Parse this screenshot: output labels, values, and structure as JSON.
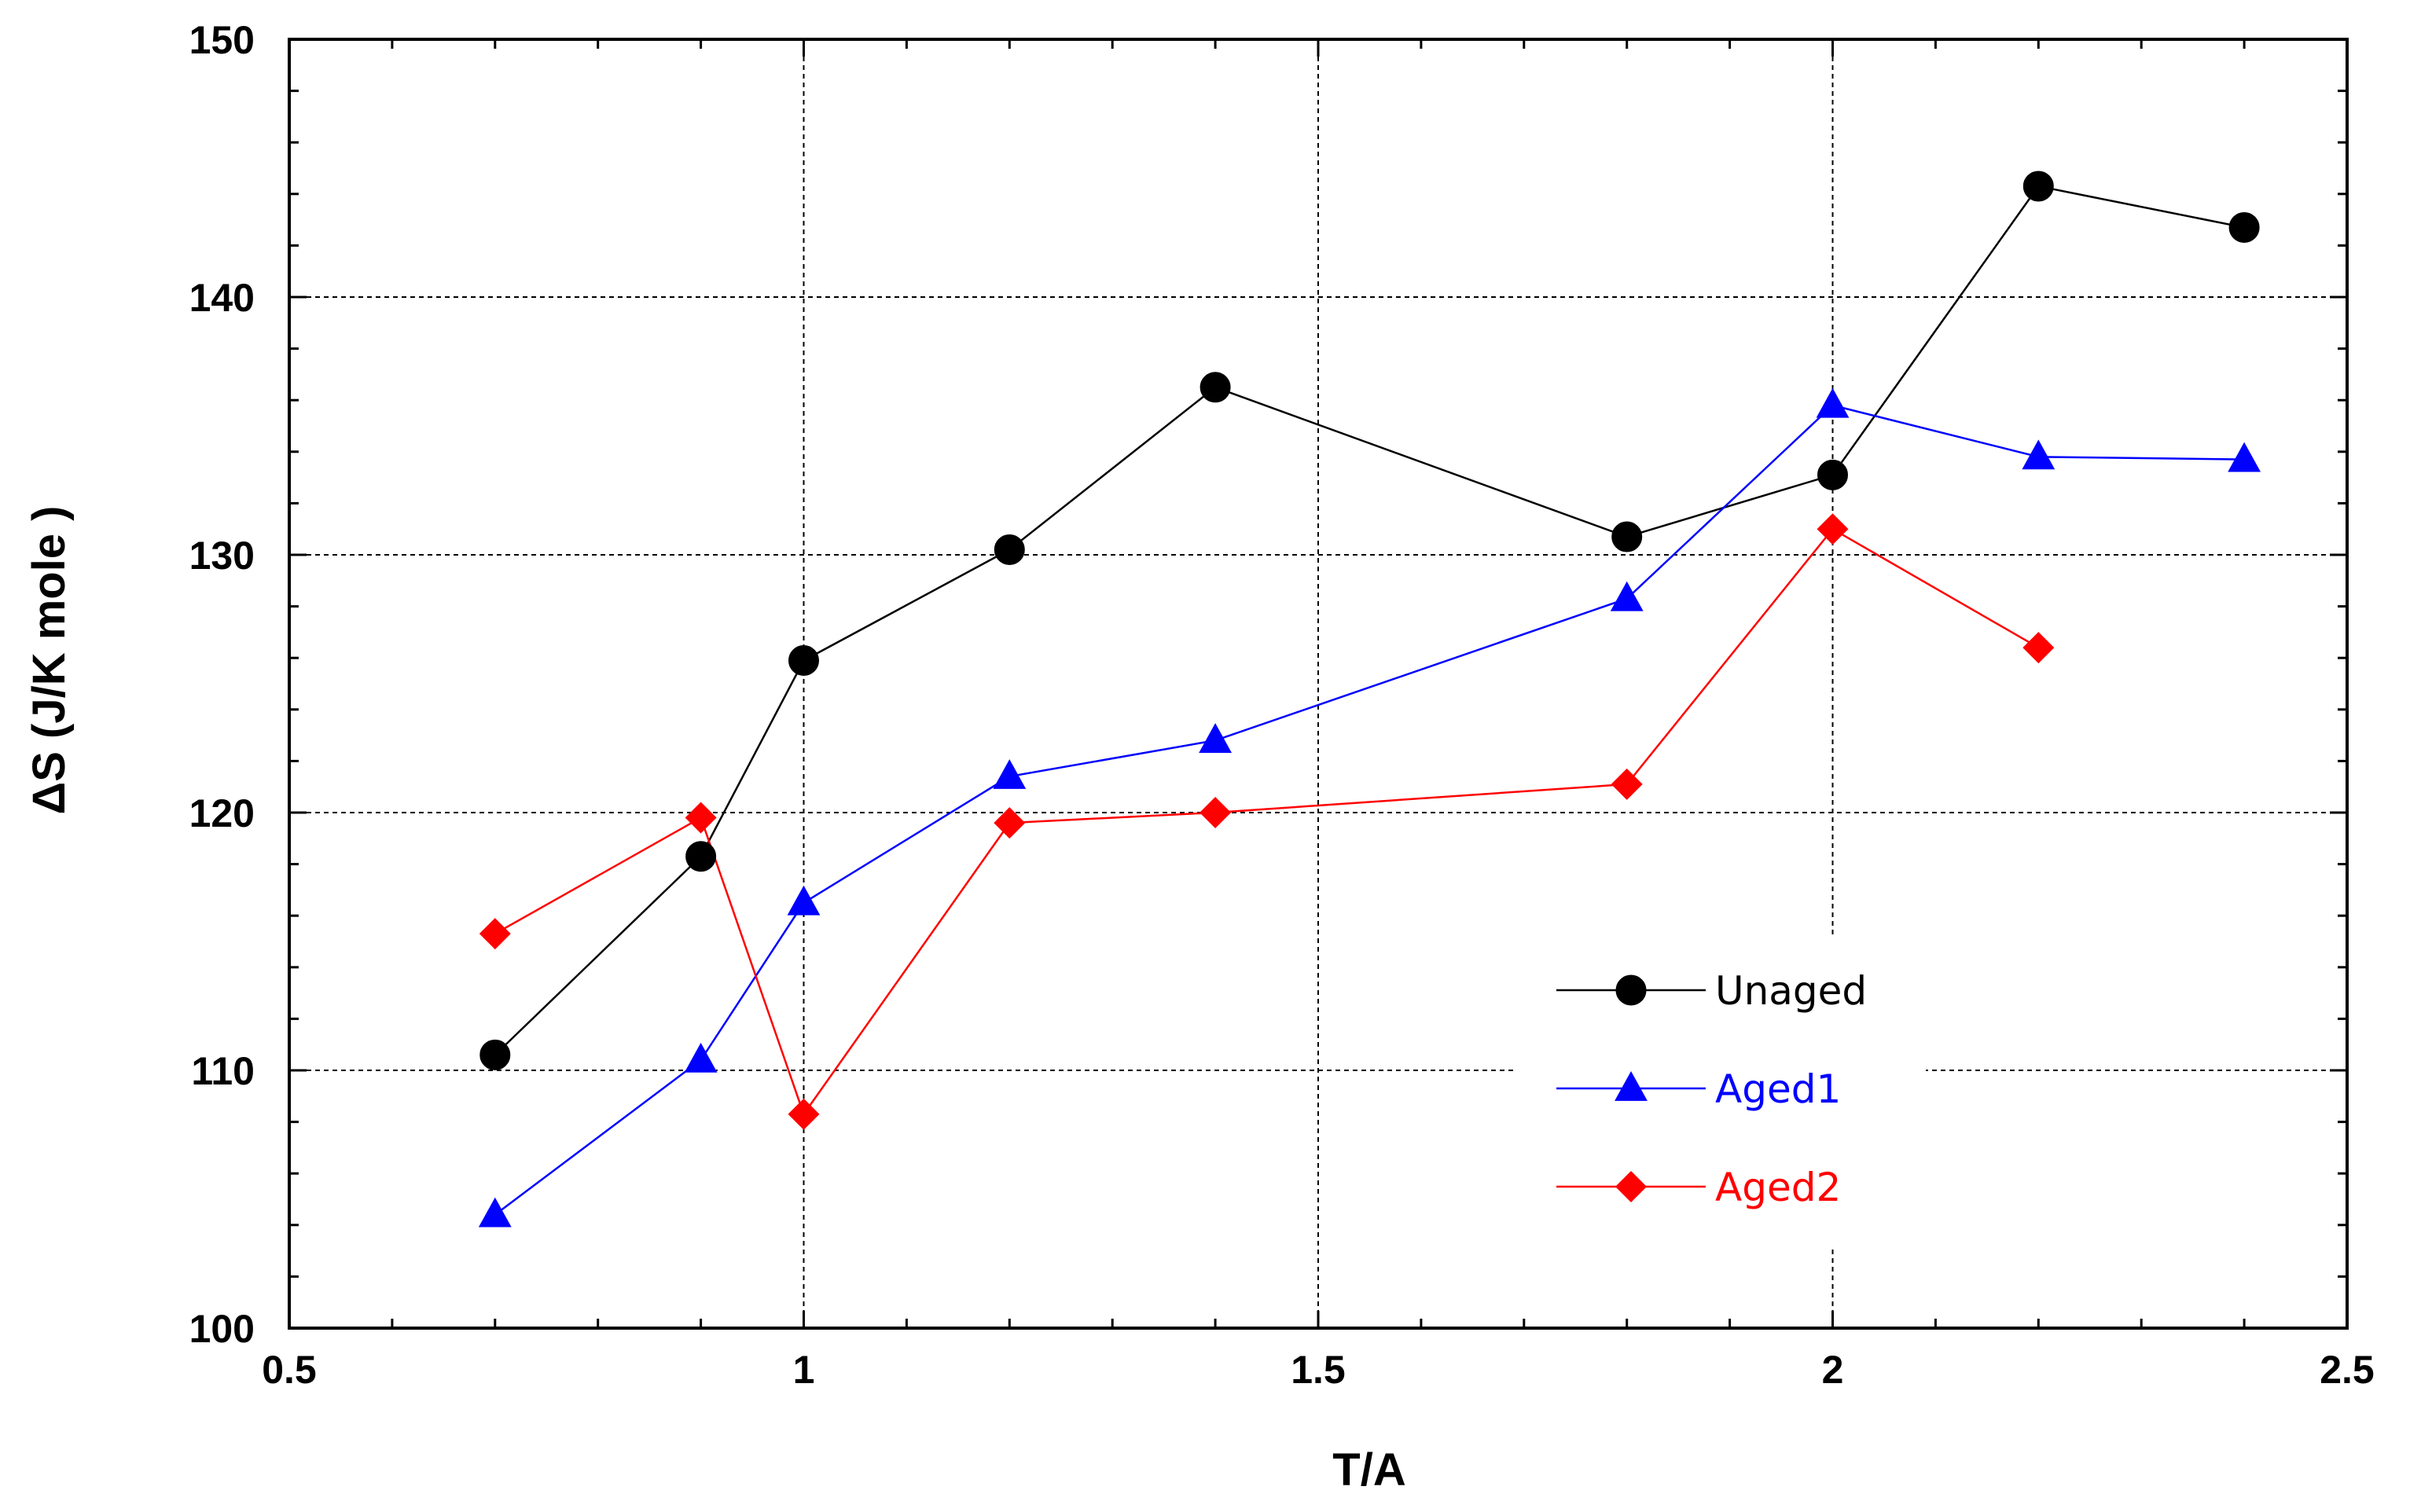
{
  "chart_data": {
    "type": "line",
    "title": "",
    "xlabel": "T/A",
    "ylabel": "ΔS (J/K mole )",
    "xlim": [
      0.5,
      2.5
    ],
    "ylim": [
      100,
      150
    ],
    "xticks": [
      0.5,
      1,
      1.5,
      2,
      2.5
    ],
    "xtick_labels": [
      "0.5",
      "1",
      "1.5",
      "2",
      "2.5"
    ],
    "yticks": [
      100,
      110,
      120,
      130,
      140,
      150
    ],
    "ytick_labels": [
      "100",
      "110",
      "120",
      "130",
      "140",
      "150"
    ],
    "grid": true,
    "legend_position": "lower-right",
    "series": [
      {
        "name": "Unaged",
        "color": "#000000",
        "marker": "circle",
        "x": [
          0.7,
          0.9,
          1.0,
          1.2,
          1.4,
          1.8,
          2.0,
          2.2,
          2.4
        ],
        "y": [
          110.6,
          118.3,
          125.9,
          130.2,
          136.5,
          130.7,
          133.1,
          144.3,
          142.7
        ]
      },
      {
        "name": "Aged1",
        "color": "#0000ff",
        "marker": "triangle",
        "x": [
          0.7,
          0.9,
          1.0,
          1.2,
          1.4,
          1.8,
          2.0,
          2.2,
          2.4
        ],
        "y": [
          104.4,
          110.4,
          116.5,
          121.4,
          122.8,
          128.3,
          135.8,
          133.8,
          133.7
        ]
      },
      {
        "name": "Aged2",
        "color": "#ff0000",
        "marker": "diamond",
        "x": [
          0.7,
          0.9,
          1.0,
          1.2,
          1.4,
          1.8,
          2.0,
          2.2
        ],
        "y": [
          115.3,
          119.8,
          108.3,
          119.6,
          120.0,
          121.1,
          131.0,
          126.4
        ]
      }
    ]
  }
}
